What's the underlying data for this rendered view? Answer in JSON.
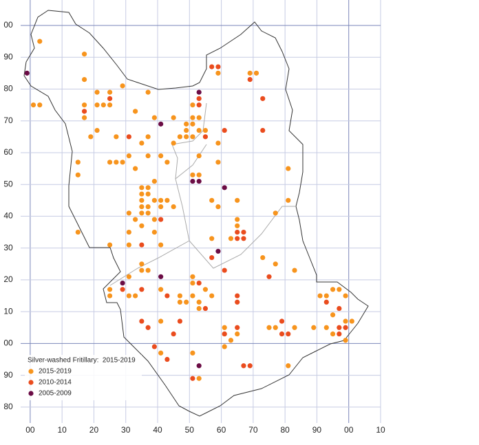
{
  "chart_data": {
    "type": "scatter",
    "legend_title": "Silver-washed Fritillary:  2015-2019",
    "xlim": [
      -3,
      110
    ],
    "ylim": [
      -25,
      108
    ],
    "xticks": [
      {
        "value": 0,
        "label": "00"
      },
      10,
      20,
      30,
      40,
      50,
      60,
      70,
      80,
      90,
      {
        "value": 100,
        "label": "00"
      },
      {
        "value": 110,
        "label": "10"
      }
    ],
    "yticks": [
      {
        "value": 100,
        "label": "00"
      },
      90,
      80,
      70,
      60,
      50,
      40,
      30,
      20,
      10,
      {
        "value": 0,
        "label": "00"
      },
      {
        "value": -10,
        "label": "90"
      },
      {
        "value": -20,
        "label": "80"
      }
    ],
    "grid": true,
    "legend": "lower left",
    "series": [
      {
        "name": "2015-2019",
        "color": "#f7941d",
        "x": [
          3,
          1,
          3,
          17,
          17,
          17,
          17,
          21,
          25,
          21,
          23,
          25,
          29,
          21,
          19,
          27,
          33,
          37,
          39,
          35,
          37,
          33,
          31,
          37,
          41,
          43,
          25,
          27,
          29,
          15,
          15,
          39,
          35,
          37,
          35,
          37,
          35,
          39,
          35,
          37,
          31,
          35,
          37,
          41,
          43,
          41,
          45,
          33,
          39,
          35,
          31,
          39,
          31,
          41,
          25,
          15,
          35,
          35,
          37,
          31,
          25,
          25,
          31,
          33,
          41,
          47,
          47,
          49,
          41,
          41,
          51,
          53,
          45,
          45,
          47,
          49,
          49,
          49,
          51,
          51,
          53,
          53,
          55,
          51,
          51,
          53,
          51,
          53,
          57,
          59,
          59,
          59,
          59,
          69,
          71,
          65,
          65,
          65,
          63,
          57,
          51,
          51,
          55,
          51,
          57,
          53,
          53,
          61,
          61,
          63,
          61,
          65,
          73,
          77,
          83,
          77,
          81,
          81,
          75,
          77,
          83,
          81,
          89,
          91,
          93,
          95,
          97,
          99,
          95,
          99,
          101,
          93,
          95,
          99
        ],
        "values": [
          95,
          75,
          75,
          91,
          83,
          75,
          71,
          79,
          79,
          75,
          75,
          75,
          81,
          67,
          65,
          65,
          73,
          79,
          71,
          63,
          65,
          55,
          59,
          59,
          59,
          57,
          57,
          57,
          57,
          57,
          53,
          51,
          49,
          49,
          47,
          47,
          45,
          45,
          43,
          43,
          41,
          41,
          41,
          45,
          45,
          43,
          43,
          39,
          39,
          37,
          35,
          35,
          31,
          31,
          31,
          35,
          25,
          23,
          23,
          21,
          17,
          15,
          15,
          15,
          17,
          15,
          13,
          13,
          7,
          -3,
          -3,
          -11,
          71,
          63,
          65,
          65,
          67,
          69,
          69,
          71,
          71,
          67,
          67,
          65,
          75,
          59,
          53,
          53,
          45,
          43,
          57,
          63,
          85,
          85,
          85,
          45,
          39,
          37,
          33,
          33,
          21,
          19,
          17,
          15,
          15,
          13,
          11,
          5,
          3,
          1,
          -1,
          3,
          27,
          25,
          23,
          41,
          45,
          55,
          5,
          5,
          5,
          -7,
          5,
          15,
          15,
          17,
          17,
          15,
          9,
          7,
          7,
          5,
          3,
          1
        ]
      },
      {
        "name": "2010-2014",
        "color": "#ea4c1e",
        "x": [
          17,
          25,
          31,
          53,
          53,
          57,
          59,
          69,
          73,
          61,
          73,
          55,
          41,
          35,
          65,
          67,
          65,
          67,
          57,
          75,
          61,
          53,
          29,
          35,
          43,
          65,
          65,
          55,
          35,
          37,
          47,
          45,
          39,
          43,
          51,
          61,
          65,
          79,
          79,
          81,
          67,
          69,
          97,
          93,
          97,
          99,
          97
        ],
        "values": [
          73,
          77,
          65,
          77,
          75,
          87,
          87,
          83,
          77,
          67,
          67,
          65,
          39,
          31,
          35,
          35,
          33,
          33,
          27,
          21,
          23,
          19,
          17,
          17,
          15,
          15,
          13,
          11,
          7,
          5,
          7,
          3,
          -1,
          -5,
          -11,
          3,
          5,
          7,
          3,
          3,
          -7,
          -7,
          11,
          13,
          5,
          5,
          3
        ]
      },
      {
        "name": "2005-2009",
        "color": "#6b0c45",
        "x": [
          -1,
          53,
          41,
          51,
          53,
          61,
          59,
          29,
          41,
          53
        ],
        "values": [
          85,
          79,
          69,
          51,
          51,
          49,
          29,
          19,
          21,
          -7
        ]
      }
    ]
  }
}
